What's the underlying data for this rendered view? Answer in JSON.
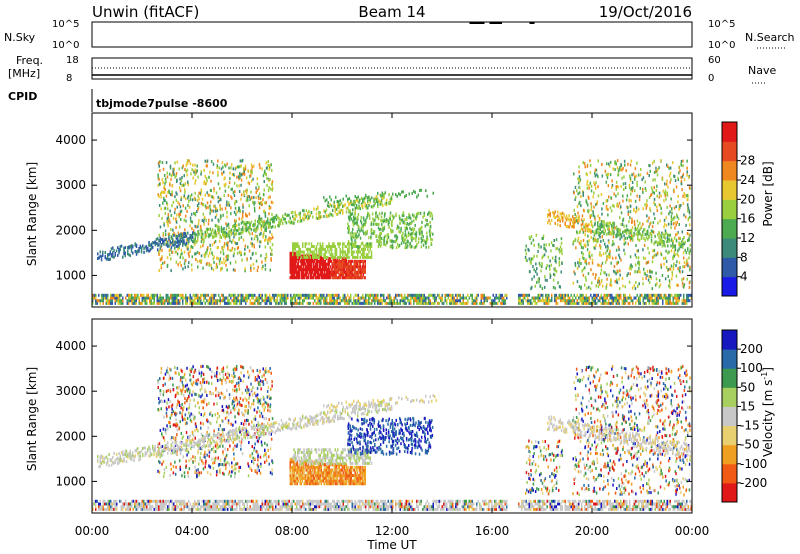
{
  "header": {
    "station": "Unwin (fitACF)",
    "beam": "Beam 14",
    "date": "19/Oct/2016"
  },
  "top_panels": {
    "nsky_label": "N.Sky",
    "nsky_ticks": [
      "10^5",
      "10^0"
    ],
    "nsearch_label": "N.Search",
    "nsearch_ticks": [
      "10^5",
      "10^0"
    ],
    "freq_label_1": "Freq.",
    "freq_label_2": "[MHz]",
    "freq_ticks": [
      "18",
      "8"
    ],
    "nave_label": "Nave",
    "nave_ticks": [
      "60",
      "0"
    ],
    "cpid_label": "CPID",
    "cpid_value": "tbjmode7pulse -8600"
  },
  "chart_data": [
    {
      "type": "heatmap",
      "name": "power",
      "ylabel": "Slant Range [km]",
      "y_ticks": [
        "1000",
        "2000",
        "3000",
        "4000"
      ],
      "ylim": [
        300,
        4600
      ],
      "colorbar": {
        "label": "Power [dB]",
        "ticks": [
          "4",
          "8",
          "12",
          "16",
          "20",
          "24",
          "28"
        ],
        "range": [
          0,
          32
        ],
        "colors": [
          "#1a1ae6",
          "#2e5aa8",
          "#3c8a7a",
          "#4caa50",
          "#9ad040",
          "#e8c830",
          "#f08820",
          "#e64a20",
          "#e01818"
        ]
      }
    },
    {
      "type": "heatmap",
      "name": "velocity",
      "ylabel": "Slant Range [km]",
      "y_ticks": [
        "1000",
        "2000",
        "3000",
        "4000"
      ],
      "ylim": [
        300,
        4600
      ],
      "colorbar": {
        "label": "Velocity [m s",
        "label_sup": "-1",
        "label_end": "]",
        "ticks": [
          "-200",
          "-100",
          "-50",
          "-15",
          "15",
          "50",
          "100",
          "200"
        ],
        "colors": [
          "#e01818",
          "#f05a14",
          "#f0a020",
          "#e8d070",
          "#c8c8c8",
          "#a8d060",
          "#3c9a50",
          "#2a6aa8",
          "#1818c0"
        ]
      }
    }
  ],
  "x_axis": {
    "label": "Time UT",
    "ticks": [
      "00:00",
      "04:00",
      "08:00",
      "12:00",
      "16:00",
      "20:00",
      "00:00"
    ],
    "xlim_hours": [
      0,
      24
    ]
  }
}
